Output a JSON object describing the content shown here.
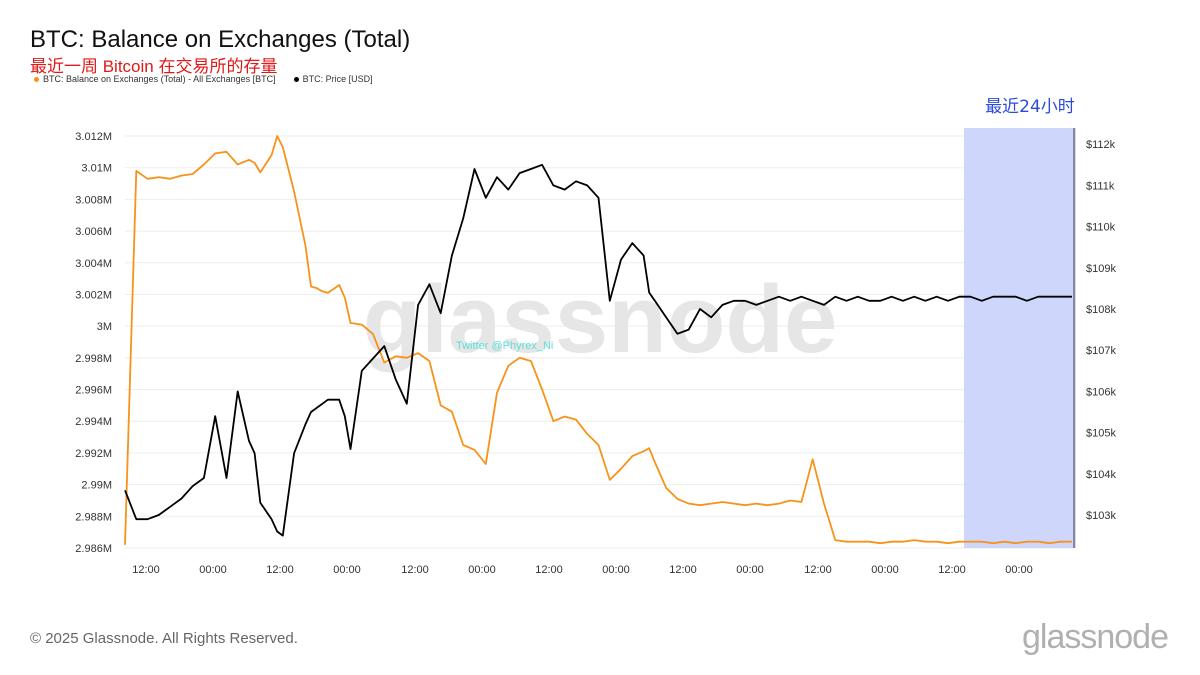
{
  "chart_data": {
    "type": "line",
    "title": "BTC: Balance on Exchanges (Total)",
    "subtitle": "最近一周 Bitcoin 在交易所的存量",
    "legend": [
      {
        "name": "BTC: Balance on Exchanges (Total) - All Exchanges [BTC]",
        "color": "#f7931a"
      },
      {
        "name": "BTC: Price [USD]",
        "color": "#000000"
      }
    ],
    "highlight_label": "最近24小时",
    "highlight_color": "#c9d3fb",
    "x_ticks": [
      "12:00",
      "00:00",
      "12:00",
      "00:00",
      "12:00",
      "00:00",
      "12:00",
      "00:00",
      "12:00",
      "00:00",
      "12:00",
      "00:00",
      "12:00",
      "00:00",
      "12:00",
      "00:00"
    ],
    "y_left": {
      "ticks": [
        "3.012M",
        "3.01M",
        "3.008M",
        "3.006M",
        "3.004M",
        "3.002M",
        "3M",
        "2.998M",
        "2.996M",
        "2.994M",
        "2.992M",
        "2.99M",
        "2.988M",
        "2.986M"
      ],
      "range": [
        2986000,
        3012000
      ]
    },
    "y_right": {
      "ticks": [
        "$112k",
        "$111k",
        "$110k",
        "$109k",
        "$108k",
        "$107k",
        "$106k",
        "$105k",
        "$104k",
        "$103k"
      ],
      "range": [
        102200,
        112200
      ]
    },
    "series": [
      {
        "name": "BTC: Balance on Exchanges (Total) - All Exchanges [BTC]",
        "axis": "left",
        "color": "#f7931a",
        "x": [
          0,
          2,
          4,
          6,
          8,
          10,
          12,
          14,
          16,
          18,
          20,
          22,
          23,
          24,
          26,
          27,
          28,
          30,
          32,
          33,
          34,
          35,
          36,
          38,
          39,
          40,
          42,
          44,
          46,
          48,
          50,
          52,
          54,
          56,
          58,
          60,
          62,
          64,
          66,
          68,
          70,
          72,
          74,
          76,
          78,
          80,
          82,
          84,
          86,
          88,
          90,
          92,
          93,
          94,
          96,
          98,
          100,
          102,
          104,
          106,
          108,
          110,
          112,
          114,
          116,
          118,
          120,
          122,
          124,
          126,
          128,
          130,
          132,
          134,
          136,
          138,
          140,
          142,
          144,
          146,
          148,
          150,
          152,
          154,
          156,
          158,
          160,
          162,
          164,
          166,
          168
        ],
        "values": [
          2986200,
          3009800,
          3009300,
          3009400,
          3009300,
          3009500,
          3009600,
          3010200,
          3010900,
          3011000,
          3010200,
          3010500,
          3010300,
          3009700,
          3010800,
          3012000,
          3011300,
          3008500,
          3005100,
          3002500,
          3002400,
          3002200,
          3002100,
          3002600,
          3001800,
          3000200,
          3000100,
          2999500,
          2997700,
          2998100,
          2998000,
          2998300,
          2997800,
          2995000,
          2994600,
          2992500,
          2992200,
          2991300,
          2995800,
          2997500,
          2998000,
          2997800,
          2996000,
          2994000,
          2994300,
          2994100,
          2993200,
          2992500,
          2990300,
          2991000,
          2991800,
          2992100,
          2992300,
          2991400,
          2989800,
          2989100,
          2988800,
          2988700,
          2988800,
          2988900,
          2988800,
          2988700,
          2988800,
          2988700,
          2988800,
          2989000,
          2988900,
          2991600,
          2988800,
          2986500,
          2986400,
          2986400,
          2986400,
          2986300,
          2986400,
          2986400,
          2986500,
          2986400,
          2986400,
          2986300,
          2986400,
          2986400,
          2986400,
          2986300,
          2986400,
          2986300,
          2986400,
          2986400,
          2986300,
          2986400,
          2986400
        ]
      },
      {
        "name": "BTC: Price [USD]",
        "axis": "right",
        "color": "#000000",
        "x": [
          0,
          2,
          4,
          6,
          8,
          10,
          12,
          14,
          16,
          18,
          20,
          22,
          23,
          24,
          26,
          27,
          28,
          30,
          32,
          33,
          34,
          35,
          36,
          38,
          39,
          40,
          42,
          44,
          46,
          48,
          50,
          52,
          54,
          56,
          58,
          60,
          62,
          64,
          66,
          68,
          70,
          72,
          74,
          76,
          78,
          80,
          82,
          84,
          86,
          88,
          90,
          92,
          93,
          94,
          96,
          98,
          100,
          102,
          104,
          106,
          108,
          110,
          112,
          114,
          116,
          118,
          120,
          122,
          124,
          126,
          128,
          130,
          132,
          134,
          136,
          138,
          140,
          142,
          144,
          146,
          148,
          150,
          152,
          154,
          156,
          158,
          160,
          162,
          164,
          166,
          168
        ],
        "values": [
          103600,
          102900,
          102900,
          103000,
          103200,
          103400,
          103700,
          103900,
          105400,
          103900,
          106000,
          104800,
          104500,
          103300,
          102900,
          102600,
          102500,
          104500,
          105200,
          105500,
          105600,
          105700,
          105800,
          105800,
          105400,
          104600,
          106500,
          106800,
          107100,
          106300,
          105700,
          108100,
          108600,
          107900,
          109300,
          110200,
          111400,
          110700,
          111200,
          110900,
          111300,
          111400,
          111500,
          111000,
          110900,
          111100,
          111000,
          110700,
          108200,
          109200,
          109600,
          109300,
          108400,
          108200,
          107800,
          107400,
          107500,
          108000,
          107800,
          108100,
          108200,
          108200,
          108100,
          108200,
          108300,
          108200,
          108300,
          108200,
          108100,
          108300,
          108200,
          108300,
          108200,
          108200,
          108300,
          108200,
          108300,
          108200,
          108300,
          108200,
          108300,
          108300,
          108200,
          108300,
          108300,
          108300,
          108200,
          108300,
          108300,
          108300,
          108300
        ]
      }
    ],
    "grid": true,
    "legend_position": "top-left"
  },
  "watermark_handle": "Twitter @Phyrex_Ni",
  "watermark_text": "glassnode",
  "footer": "© 2025 Glassnode. All Rights Reserved.",
  "logo": "glassnode"
}
